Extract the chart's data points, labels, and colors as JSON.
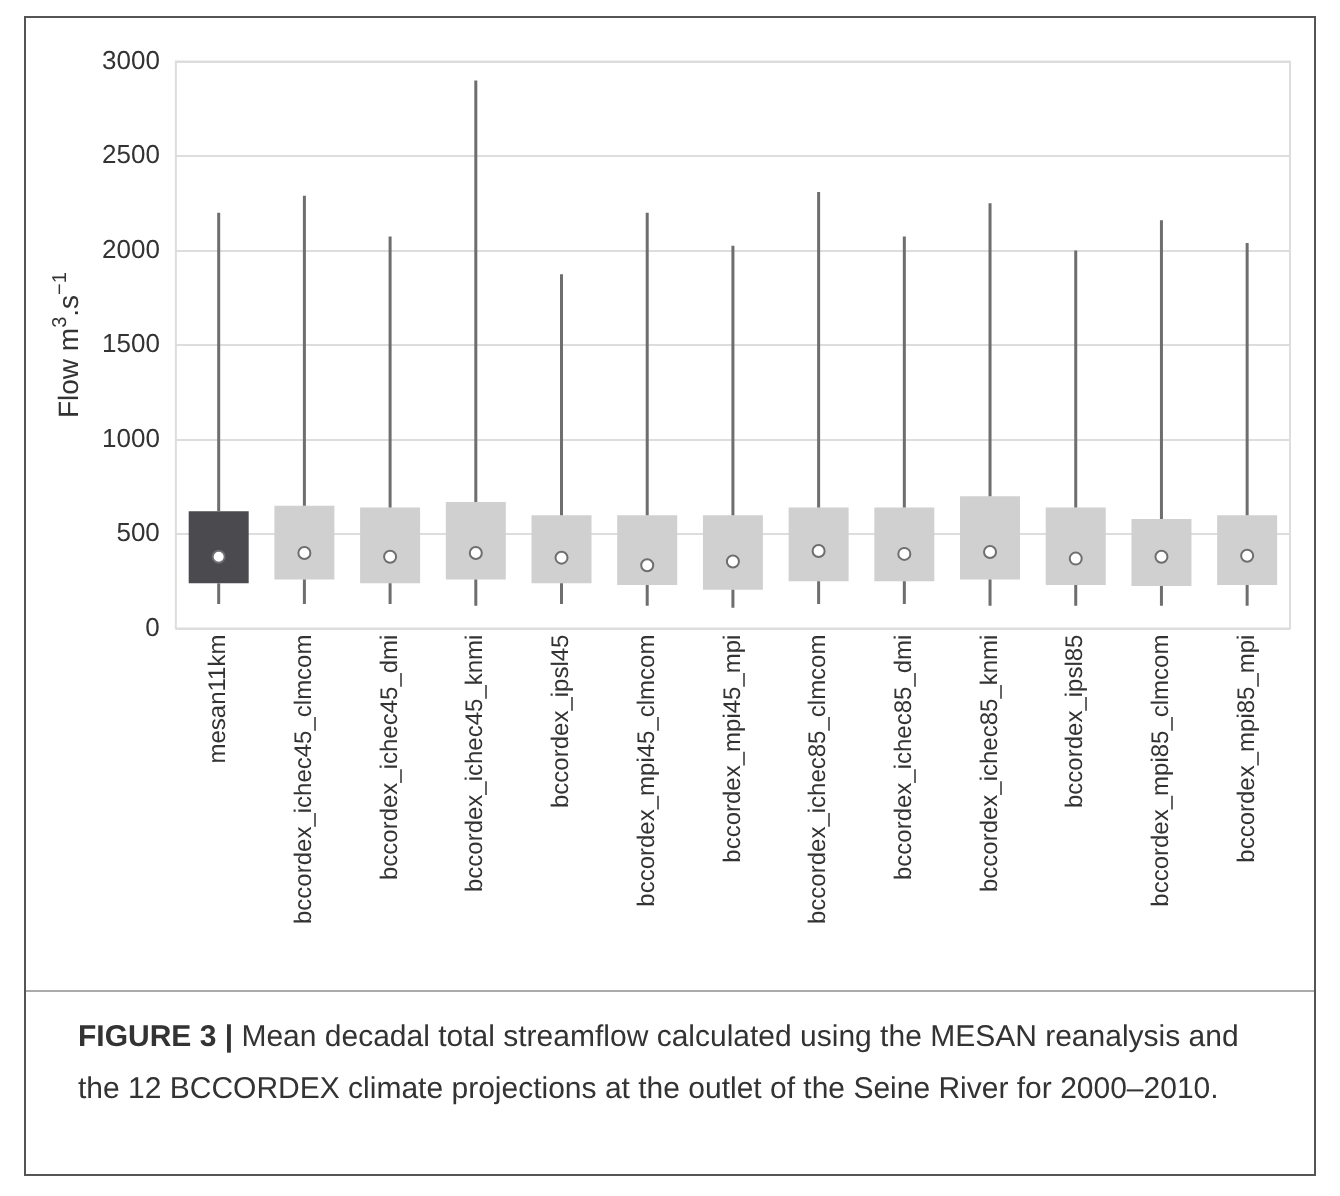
{
  "chart_data": {
    "type": "box",
    "title": "FIGURE 3 |",
    "annotations": [
      "Mean decadal total streamflow calculated using the MESAN reanalysis and the 12 BCCORDEX climate projections at the outlet of the Seine River for 2000–2010."
    ],
    "ylabel": "Flow m$^{3}$.s$^{−1}$",
    "categories": [
      "mesan11km",
      "bccordex_ichec45_clmcom",
      "bccordex_ichec45_dmi",
      "bccordex_ichec45_knmi",
      "bccordex_ipsl45",
      "bccordex_mpi45_clmcom",
      "bccordex_mpi45_mpi",
      "bccordex_ichec85_clmcom",
      "bccordex_ichec85_dmi",
      "bccordex_ichec85_knmi",
      "bccordex_ipsl85",
      "bccordex_mpi85_clmcom",
      "bccordex_mpi85_mpi"
    ],
    "colors": [
      "#4a4a4f",
      "#d0d0d0",
      "#d0d0d0",
      "#d0d0d0",
      "#d0d0d0",
      "#d0d0d0",
      "#d0d0d0",
      "#d0d0d0",
      "#d0d0d0",
      "#d0d0d0",
      "#d0d0d0",
      "#d0d0d0",
      "#d0d0d0"
    ],
    "boxes": [
      {
        "low": 130,
        "q1": 240,
        "median": 380,
        "q3": 620,
        "high": 2200
      },
      {
        "low": 130,
        "q1": 260,
        "median": 400,
        "q3": 650,
        "high": 2290
      },
      {
        "low": 130,
        "q1": 240,
        "median": 380,
        "q3": 640,
        "high": 2075
      },
      {
        "low": 120,
        "q1": 260,
        "median": 400,
        "q3": 670,
        "high": 2900
      },
      {
        "low": 130,
        "q1": 240,
        "median": 375,
        "q3": 600,
        "high": 1875
      },
      {
        "low": 120,
        "q1": 230,
        "median": 335,
        "q3": 600,
        "high": 2200
      },
      {
        "low": 110,
        "q1": 205,
        "median": 355,
        "q3": 600,
        "high": 2025
      },
      {
        "low": 130,
        "q1": 250,
        "median": 410,
        "q3": 640,
        "high": 2310
      },
      {
        "low": 130,
        "q1": 250,
        "median": 395,
        "q3": 640,
        "high": 2075
      },
      {
        "low": 120,
        "q1": 260,
        "median": 405,
        "q3": 700,
        "high": 2250
      },
      {
        "low": 120,
        "q1": 230,
        "median": 370,
        "q3": 640,
        "high": 2000
      },
      {
        "low": 120,
        "q1": 225,
        "median": 380,
        "q3": 580,
        "high": 2160
      },
      {
        "low": 120,
        "q1": 230,
        "median": 385,
        "q3": 600,
        "high": 2040
      }
    ],
    "ylim": [
      0,
      3000
    ],
    "yticks": [
      0,
      500,
      1000,
      1500,
      2000,
      2500,
      3000
    ],
    "grid": "y"
  }
}
